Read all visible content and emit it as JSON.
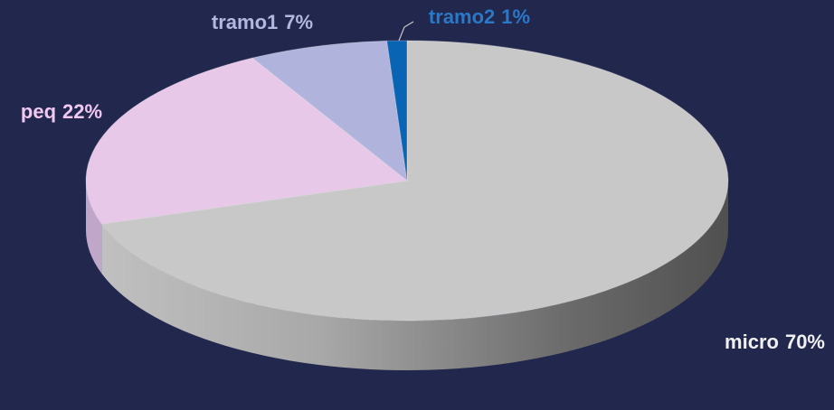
{
  "chart_data": {
    "type": "pie",
    "categories": [
      "micro",
      "peq",
      "tramo1",
      "tramo2"
    ],
    "values": [
      70,
      22,
      7,
      1
    ],
    "value_labels": [
      "70%",
      "22%",
      "7%",
      "1%"
    ],
    "colors": [
      "#c8c8c8",
      "#e8c8e8",
      "#b0b4dc",
      "#0a64b4"
    ],
    "label_colors": [
      "#f0f0f0",
      "#f0c8f0",
      "#b4b8e0",
      "#2a78c8"
    ]
  }
}
